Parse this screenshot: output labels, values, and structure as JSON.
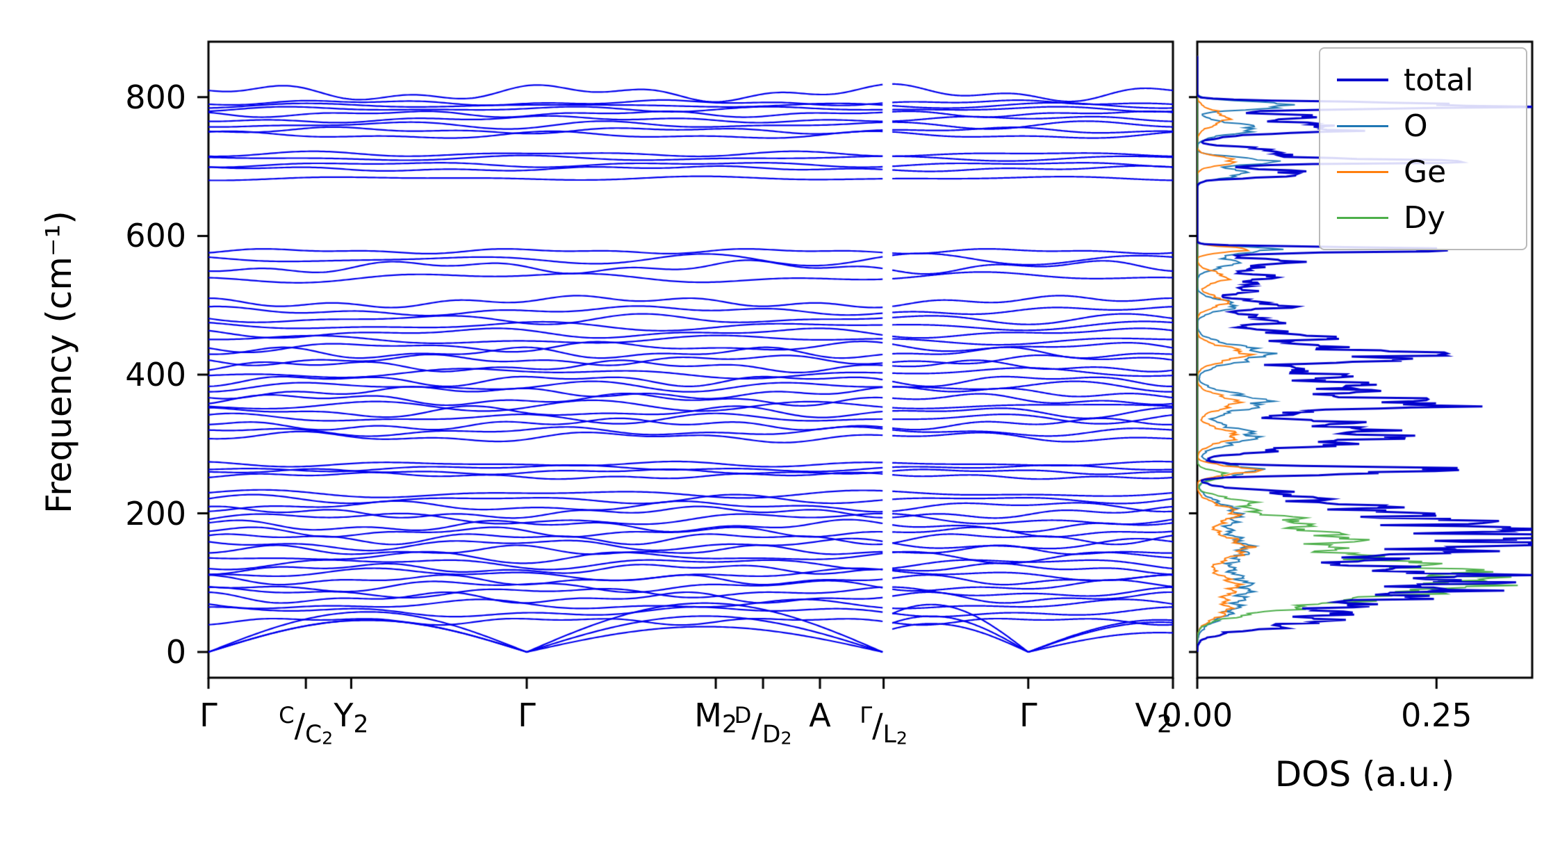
{
  "chart_data": [
    {
      "type": "line",
      "name": "phonon-band-structure",
      "ylabel": "Frequency (cm⁻¹)",
      "ylim": [
        -37,
        880
      ],
      "yticks": [
        0,
        200,
        400,
        600,
        800
      ],
      "ytick_labels": [
        "0",
        "200",
        "400",
        "600",
        "800"
      ],
      "band_color": "#0000ee",
      "kpath": {
        "labels_plain": [
          "Γ",
          "C/C2",
          "Y2",
          "Γ",
          "M2",
          "D/D2",
          "A",
          "Γ/L2",
          "Γ",
          "V2"
        ],
        "points": [
          {
            "pos": 0.0,
            "parts": [
              {
                "t": "Γ"
              }
            ]
          },
          {
            "pos": 0.101,
            "parts": [
              {
                "t": "C",
                "s": "sup"
              },
              {
                "t": "/"
              },
              {
                "t": "C",
                "s": "sub"
              },
              {
                "t": "2",
                "s": "subsub"
              }
            ]
          },
          {
            "pos": 0.148,
            "parts": [
              {
                "t": "Y"
              },
              {
                "t": "2",
                "s": "sub"
              }
            ]
          },
          {
            "pos": 0.33,
            "parts": [
              {
                "t": "Γ"
              }
            ]
          },
          {
            "pos": 0.526,
            "parts": [
              {
                "t": "M"
              },
              {
                "t": "2",
                "s": "sub"
              }
            ]
          },
          {
            "pos": 0.575,
            "parts": [
              {
                "t": "D",
                "s": "sup"
              },
              {
                "t": "/"
              },
              {
                "t": "D",
                "s": "sub"
              },
              {
                "t": "2",
                "s": "subsub"
              }
            ]
          },
          {
            "pos": 0.634,
            "parts": [
              {
                "t": "A"
              }
            ]
          },
          {
            "pos": 0.7,
            "parts": [
              {
                "t": "Γ",
                "s": "sup"
              },
              {
                "t": "/"
              },
              {
                "t": "L",
                "s": "sub"
              },
              {
                "t": "2",
                "s": "subsub"
              }
            ]
          },
          {
            "pos": 0.85,
            "parts": [
              {
                "t": "Γ"
              }
            ]
          },
          {
            "pos": 0.98,
            "parts": [
              {
                "t": "V"
              },
              {
                "t": "2",
                "s": "sub"
              }
            ]
          }
        ],
        "break_at": 0.704,
        "gamma_positions": [
          0.0,
          0.33,
          0.7,
          0.85
        ]
      },
      "acoustic_heights": [
        40,
        52,
        62
      ],
      "bands": [
        [
          45,
          6
        ],
        [
          58,
          8
        ],
        [
          68,
          8
        ],
        [
          78,
          9
        ],
        [
          86,
          8
        ],
        [
          95,
          9
        ],
        [
          104,
          8
        ],
        [
          112,
          9
        ],
        [
          120,
          8
        ],
        [
          128,
          9
        ],
        [
          137,
          9
        ],
        [
          146,
          8
        ],
        [
          155,
          9
        ],
        [
          164,
          9
        ],
        [
          173,
          8
        ],
        [
          182,
          9
        ],
        [
          192,
          10
        ],
        [
          201,
          9
        ],
        [
          210,
          8
        ],
        [
          220,
          7
        ],
        [
          228,
          6
        ],
        [
          254,
          5
        ],
        [
          260,
          4
        ],
        [
          265,
          5
        ],
        [
          271,
          4
        ],
        [
          310,
          8
        ],
        [
          318,
          7
        ],
        [
          328,
          9
        ],
        [
          337,
          8
        ],
        [
          346,
          9
        ],
        [
          355,
          8
        ],
        [
          364,
          9
        ],
        [
          374,
          9
        ],
        [
          383,
          8
        ],
        [
          392,
          9
        ],
        [
          402,
          8
        ],
        [
          412,
          9
        ],
        [
          421,
          8
        ],
        [
          431,
          9
        ],
        [
          440,
          8
        ],
        [
          450,
          7
        ],
        [
          460,
          8
        ],
        [
          470,
          7
        ],
        [
          480,
          8
        ],
        [
          492,
          7
        ],
        [
          505,
          9
        ],
        [
          540,
          8
        ],
        [
          555,
          10
        ],
        [
          566,
          9
        ],
        [
          578,
          4
        ],
        [
          683,
          3
        ],
        [
          697,
          4
        ],
        [
          703,
          4
        ],
        [
          712,
          4
        ],
        [
          718,
          4
        ],
        [
          745,
          6
        ],
        [
          752,
          5
        ],
        [
          760,
          6
        ],
        [
          768,
          5
        ],
        [
          776,
          5
        ],
        [
          783,
          4
        ],
        [
          788,
          4
        ],
        [
          792,
          4
        ],
        [
          806,
          13
        ]
      ]
    },
    {
      "type": "line",
      "name": "phonon-dos",
      "xlabel": "DOS (a.u.)",
      "xlim": [
        0,
        0.35
      ],
      "xticks": [
        0.0,
        0.25
      ],
      "xtick_labels": [
        "0.00",
        "0.25"
      ],
      "legend_position": "upper right",
      "series": [
        {
          "name": "total",
          "color": "#0000cd",
          "peaks": [
            [
              40,
              0.06,
              10
            ],
            [
              55,
              0.09,
              12
            ],
            [
              88,
              0.23,
              16
            ],
            [
              112,
              0.18,
              10
            ],
            [
              140,
              0.15,
              12
            ],
            [
              163,
              0.29,
              13
            ],
            [
              188,
              0.22,
              12
            ],
            [
              210,
              0.13,
              9
            ],
            [
              228,
              0.08,
              7
            ],
            [
              262,
              0.27,
              5
            ],
            [
              295,
              0.08,
              8
            ],
            [
              312,
              0.18,
              9
            ],
            [
              330,
              0.12,
              7
            ],
            [
              358,
              0.25,
              9
            ],
            [
              382,
              0.16,
              8
            ],
            [
              400,
              0.12,
              7
            ],
            [
              428,
              0.24,
              10
            ],
            [
              455,
              0.12,
              7
            ],
            [
              478,
              0.08,
              7
            ],
            [
              500,
              0.09,
              6
            ],
            [
              522,
              0.05,
              7
            ],
            [
              540,
              0.07,
              7
            ],
            [
              562,
              0.09,
              7
            ],
            [
              580,
              0.31,
              3
            ],
            [
              690,
              0.12,
              5
            ],
            [
              708,
              0.26,
              4
            ],
            [
              722,
              0.09,
              5
            ],
            [
              755,
              0.15,
              7
            ],
            [
              772,
              0.1,
              5
            ],
            [
              788,
              0.34,
              4
            ]
          ]
        },
        {
          "name": "O",
          "color": "#1f77b4",
          "peaks": [
            [
              60,
              0.03,
              15
            ],
            [
              95,
              0.05,
              18
            ],
            [
              150,
              0.05,
              20
            ],
            [
              200,
              0.04,
              15
            ],
            [
              262,
              0.06,
              8
            ],
            [
              312,
              0.06,
              12
            ],
            [
              360,
              0.07,
              12
            ],
            [
              430,
              0.07,
              12
            ],
            [
              500,
              0.04,
              8
            ],
            [
              562,
              0.04,
              8
            ],
            [
              580,
              0.08,
              4
            ],
            [
              690,
              0.05,
              6
            ],
            [
              708,
              0.08,
              5
            ],
            [
              755,
              0.06,
              8
            ],
            [
              788,
              0.1,
              5
            ]
          ]
        },
        {
          "name": "Ge",
          "color": "#ff7f0e",
          "peaks": [
            [
              60,
              0.03,
              12
            ],
            [
              95,
              0.04,
              14
            ],
            [
              150,
              0.05,
              16
            ],
            [
              200,
              0.04,
              12
            ],
            [
              262,
              0.06,
              6
            ],
            [
              312,
              0.04,
              10
            ],
            [
              360,
              0.04,
              10
            ],
            [
              430,
              0.05,
              10
            ],
            [
              505,
              0.03,
              8
            ],
            [
              540,
              0.03,
              8
            ],
            [
              580,
              0.05,
              4
            ],
            [
              708,
              0.04,
              6
            ],
            [
              770,
              0.03,
              10
            ]
          ]
        },
        {
          "name": "Dy",
          "color": "#4daf4a",
          "peaks": [
            [
              70,
              0.1,
              14
            ],
            [
              95,
              0.22,
              13
            ],
            [
              118,
              0.2,
              12
            ],
            [
              140,
              0.12,
              12
            ],
            [
              165,
              0.14,
              10
            ],
            [
              190,
              0.1,
              10
            ],
            [
              215,
              0.05,
              8
            ],
            [
              255,
              0.03,
              6
            ]
          ]
        }
      ],
      "legend_entries": [
        "total",
        "O",
        "Ge",
        "Dy"
      ]
    }
  ]
}
